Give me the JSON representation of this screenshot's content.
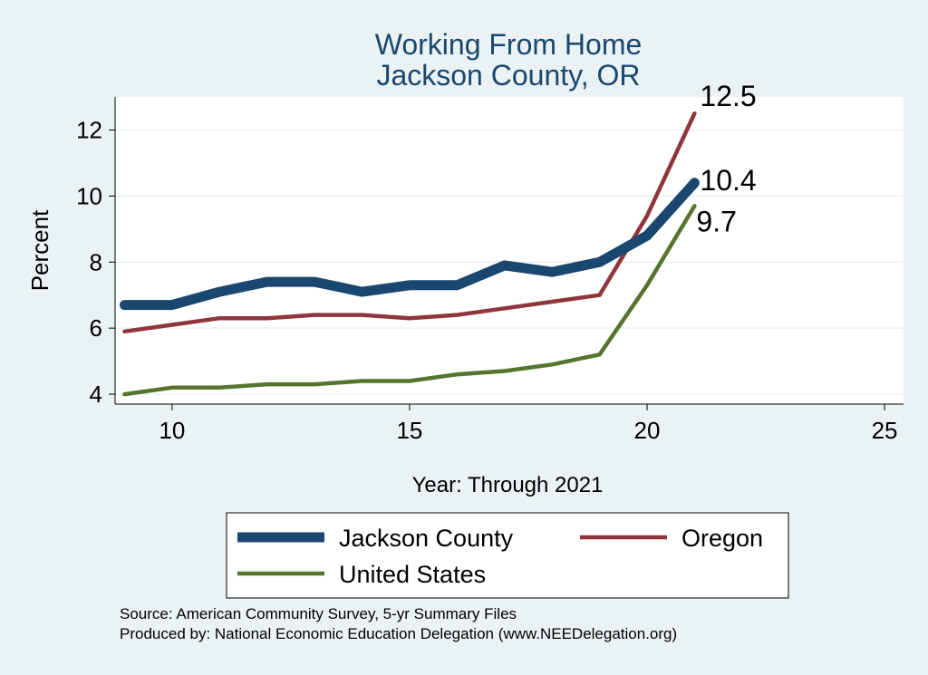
{
  "chart_data": {
    "type": "line",
    "title_lines": [
      "Working From Home",
      "Jackson County, OR"
    ],
    "xlabel": "Year: Through 2021",
    "ylabel": "Percent",
    "xlim": [
      8.8,
      25.4
    ],
    "ylim": [
      3.7,
      13.0
    ],
    "x_ticks": [
      10,
      15,
      20,
      25
    ],
    "y_ticks": [
      4,
      6,
      8,
      10,
      12
    ],
    "grid": true,
    "legend_position": "bottom",
    "series": [
      {
        "name": "Jackson County",
        "color": "#1a476f",
        "x": [
          9,
          10,
          11,
          12,
          13,
          14,
          15,
          16,
          17,
          18,
          19,
          20,
          21
        ],
        "y": [
          6.7,
          6.7,
          7.1,
          7.4,
          7.4,
          7.1,
          7.3,
          7.3,
          7.9,
          7.7,
          8.0,
          8.8,
          10.4
        ],
        "end_label": "10.4"
      },
      {
        "name": "Oregon",
        "color": "#90353b",
        "x": [
          9,
          10,
          11,
          12,
          13,
          14,
          15,
          16,
          17,
          18,
          19,
          20,
          21
        ],
        "y": [
          5.9,
          6.1,
          6.3,
          6.3,
          6.4,
          6.4,
          6.3,
          6.4,
          6.6,
          6.8,
          7.0,
          9.4,
          12.5
        ],
        "end_label": "12.5"
      },
      {
        "name": "United States",
        "color": "#55752f",
        "x": [
          9,
          10,
          11,
          12,
          13,
          14,
          15,
          16,
          17,
          18,
          19,
          20,
          21
        ],
        "y": [
          4.0,
          4.2,
          4.2,
          4.3,
          4.3,
          4.4,
          4.4,
          4.6,
          4.7,
          4.9,
          5.2,
          7.3,
          9.7
        ],
        "end_label": "9.7"
      }
    ]
  },
  "footnotes": {
    "source": "Source: American Community Survey, 5-yr Summary Files",
    "produced_by": "Produced by: National Economic Education Delegation (www.NEEDelegation.org)"
  }
}
